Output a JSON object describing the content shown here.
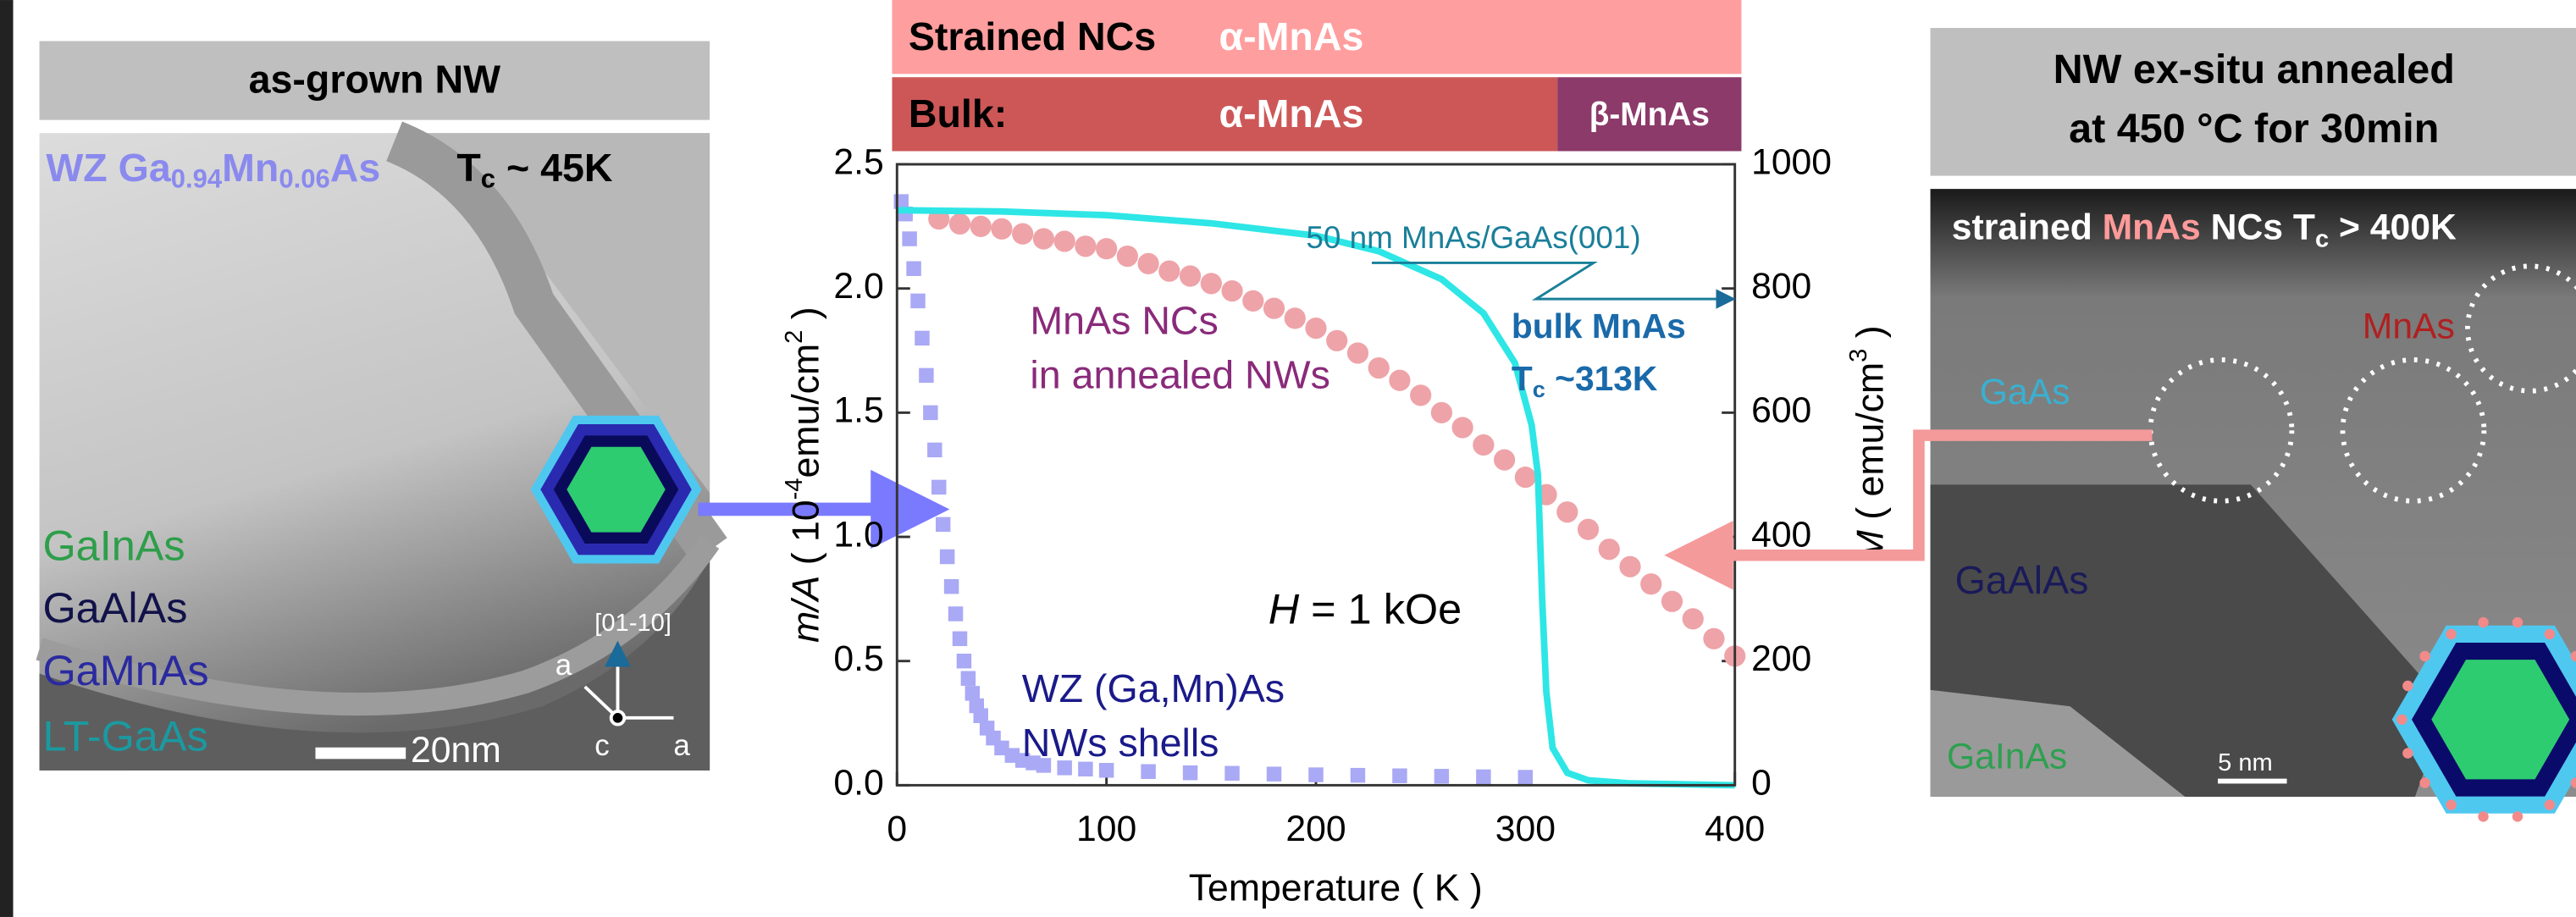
{
  "left_panel": {
    "header": "as-grown NW",
    "formula": {
      "p1": "WZ Ga",
      "s1": "0.94",
      "p2": "Mn",
      "s2": "0.06",
      "p3": "As"
    },
    "tc": {
      "t": "T",
      "sub": "c",
      "rest": " ~ 45K"
    },
    "layers": [
      "GaInAs",
      "GaAlAs",
      "GaMnAs",
      "LT-GaAs"
    ],
    "scale_bar": "20nm",
    "direction": "[01-10]",
    "axes": [
      "a",
      "c",
      "a"
    ]
  },
  "right_panel": {
    "header": [
      "NW ex-situ annealed",
      "at 450 °C for 30min"
    ],
    "caption": {
      "p1": "strained ",
      "mnas": "MnAs",
      "p2": " NCs T",
      "sub": "c",
      "p3": " > 400K"
    },
    "labels": {
      "mnas": "MnAs",
      "gaas": "GaAs",
      "gaalas": "GaAlAs",
      "gainas": "GaInAs"
    },
    "scale_bar": "5 nm"
  },
  "chart_data": {
    "type": "line",
    "phase_bars": {
      "strained_label": "Strained NCs",
      "strained_phase": "α-MnAs",
      "bulk_label": "Bulk:",
      "bulk_alpha": "α-MnAs",
      "bulk_beta": "β-MnAs"
    },
    "y_label": {
      "var": "m/A",
      "p1": " ( 10",
      "exp": "-4",
      "p2": "emu/cm",
      "sq": "2",
      "p3": " )"
    },
    "y2_label": {
      "var": "M",
      "p1": "  ( emu/cm",
      "cube": "3",
      "p2": " )"
    },
    "x_label": "Temperature   ( K )",
    "xlim": [
      0,
      400
    ],
    "xticks": [
      0,
      100,
      200,
      300,
      400
    ],
    "ylim": [
      0,
      2.5
    ],
    "yticks": [
      {
        "value": 0,
        "label": "0.0"
      },
      0.5,
      {
        "value": 1,
        "label": "1.0"
      },
      1.5,
      {
        "value": 2,
        "label": "2.0"
      },
      2.5
    ],
    "y2lim": [
      0,
      1000
    ],
    "y2ticks": [
      0,
      200,
      400,
      600,
      800,
      1000
    ],
    "annotations": {
      "film": "50 nm MnAs/GaAs(001)",
      "bulk1": "bulk MnAs",
      "bulk2t": "T",
      "bulk2sub": "c",
      "bulk2rest": " ~313K",
      "nc1": "MnAs NCs",
      "nc2": "in annealed NWs",
      "field_var": "H",
      "field_rest": " = 1 kOe",
      "wz1": "WZ (Ga,Mn)As",
      "wz2": "NWs shells"
    },
    "series": [
      {
        "color": "#a9a9f5",
        "marker": "square",
        "axis": "y",
        "x": [
          2,
          4,
          6,
          8,
          10,
          12,
          14,
          16,
          18,
          20,
          22,
          24,
          26,
          28,
          30,
          32,
          34,
          36,
          38,
          40,
          43,
          46,
          50,
          55,
          60,
          65,
          70,
          80,
          90,
          100,
          120,
          140,
          160,
          180,
          200,
          220,
          240,
          260,
          280,
          300
        ],
        "values": [
          2.35,
          2.3,
          2.2,
          2.08,
          1.95,
          1.8,
          1.65,
          1.5,
          1.35,
          1.2,
          1.05,
          0.92,
          0.8,
          0.69,
          0.59,
          0.5,
          0.43,
          0.37,
          0.32,
          0.28,
          0.23,
          0.19,
          0.15,
          0.12,
          0.1,
          0.09,
          0.08,
          0.07,
          0.065,
          0.06,
          0.055,
          0.05,
          0.048,
          0.045,
          0.042,
          0.04,
          0.038,
          0.036,
          0.034,
          0.032
        ]
      },
      {
        "color": "#eea3a8",
        "marker": "circle",
        "axis": "y",
        "x": [
          20,
          30,
          40,
          50,
          60,
          70,
          80,
          90,
          100,
          110,
          120,
          130,
          140,
          150,
          160,
          170,
          180,
          190,
          200,
          210,
          220,
          230,
          240,
          250,
          260,
          270,
          280,
          290,
          300,
          310,
          320,
          330,
          340,
          350,
          360,
          370,
          380,
          390,
          400
        ],
        "values": [
          2.28,
          2.26,
          2.25,
          2.24,
          2.22,
          2.2,
          2.19,
          2.17,
          2.16,
          2.13,
          2.1,
          2.07,
          2.05,
          2.02,
          1.99,
          1.95,
          1.92,
          1.88,
          1.84,
          1.79,
          1.74,
          1.68,
          1.63,
          1.57,
          1.5,
          1.44,
          1.37,
          1.31,
          1.24,
          1.17,
          1.1,
          1.03,
          0.95,
          0.88,
          0.81,
          0.74,
          0.67,
          0.59,
          0.52
        ]
      },
      {
        "color": "#2ee6e6",
        "marker": "none",
        "axis": "y2",
        "x": [
          0,
          50,
          100,
          150,
          200,
          230,
          260,
          280,
          295,
          303,
          306,
          308,
          310,
          313,
          320,
          330,
          350,
          400
        ],
        "values": [
          926,
          924,
          918,
          905,
          885,
          860,
          815,
          760,
          680,
          580,
          500,
          300,
          150,
          60,
          20,
          8,
          3,
          0
        ]
      }
    ]
  }
}
